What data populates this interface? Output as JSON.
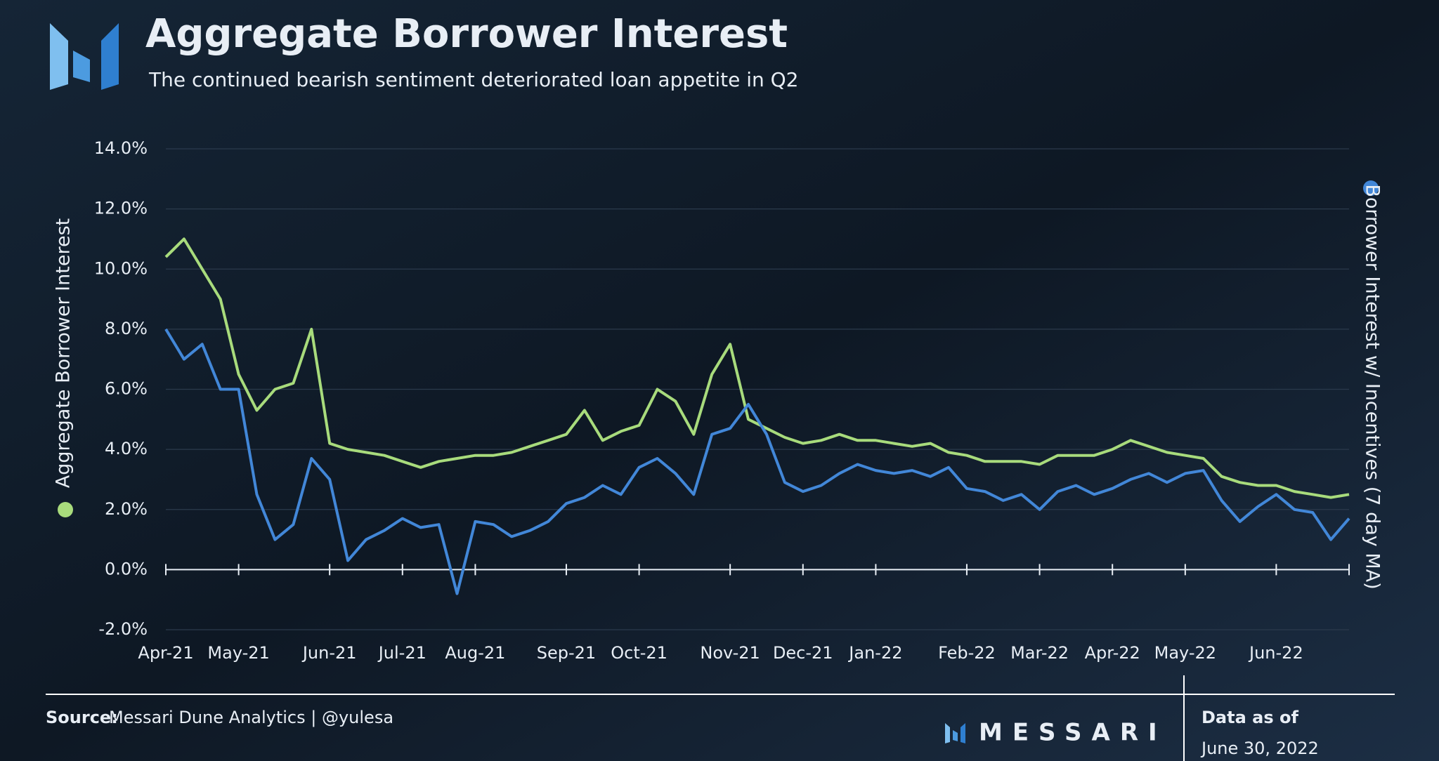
{
  "chart_data": {
    "type": "line",
    "title": "Aggregate Borrower Interest",
    "subtitle": "The continued bearish sentiment deteriorated loan appetite in Q2",
    "categories": [
      "Apr-21",
      null,
      null,
      null,
      "May-21",
      null,
      null,
      null,
      null,
      "Jun-21",
      null,
      null,
      null,
      "Jul-21",
      null,
      null,
      null,
      "Aug-21",
      null,
      null,
      null,
      null,
      "Sep-21",
      null,
      null,
      null,
      "Oct-21",
      null,
      null,
      null,
      null,
      "Nov-21",
      null,
      null,
      null,
      "Dec-21",
      null,
      null,
      null,
      "Jan-22",
      null,
      null,
      null,
      null,
      "Feb-22",
      null,
      null,
      null,
      "Mar-22",
      null,
      null,
      null,
      "Apr-22",
      null,
      null,
      null,
      "May-22",
      null,
      null,
      null,
      null,
      "Jun-22",
      null,
      null,
      null,
      null
    ],
    "series": [
      {
        "name": "Aggregate Borrower Interest",
        "color": "#a8db7c",
        "values": [
          10.4,
          11.0,
          10.0,
          9.0,
          6.5,
          5.3,
          6.0,
          6.2,
          8.0,
          4.2,
          4.0,
          3.9,
          3.8,
          3.6,
          3.4,
          3.6,
          3.7,
          3.8,
          3.8,
          3.9,
          4.1,
          4.3,
          4.5,
          5.3,
          4.3,
          4.6,
          4.8,
          6.0,
          5.6,
          4.5,
          6.5,
          7.5,
          5.0,
          4.7,
          4.4,
          4.2,
          4.3,
          4.5,
          4.3,
          4.3,
          4.2,
          4.1,
          4.2,
          3.9,
          3.8,
          3.6,
          3.6,
          3.6,
          3.5,
          3.8,
          3.8,
          3.8,
          4.0,
          4.3,
          4.1,
          3.9,
          3.8,
          3.7,
          3.1,
          2.9,
          2.8,
          2.8,
          2.6,
          2.5,
          2.4,
          2.5
        ]
      },
      {
        "name": "Borrower Interest w/ Incentives (7 day MA)",
        "color": "#4287d8",
        "values": [
          8.0,
          7.0,
          7.5,
          6.0,
          6.0,
          2.5,
          1.0,
          1.5,
          3.7,
          3.0,
          0.3,
          1.0,
          1.3,
          1.7,
          1.4,
          1.5,
          -0.8,
          1.6,
          1.5,
          1.1,
          1.3,
          1.6,
          2.2,
          2.4,
          2.8,
          2.5,
          3.4,
          3.7,
          3.2,
          2.5,
          4.5,
          4.7,
          5.5,
          4.5,
          2.9,
          2.6,
          2.8,
          3.2,
          3.5,
          3.3,
          3.2,
          3.3,
          3.1,
          3.4,
          2.7,
          2.6,
          2.3,
          2.5,
          2.0,
          2.6,
          2.8,
          2.5,
          2.7,
          3.0,
          3.2,
          2.9,
          3.2,
          3.3,
          2.3,
          1.6,
          2.1,
          2.5,
          2.0,
          1.9,
          1.0,
          1.7
        ]
      }
    ],
    "ylim": [
      -2,
      14
    ],
    "yticks": [
      {
        "value": -2,
        "label": "-2.0%"
      },
      {
        "value": 0,
        "label": "0.0%"
      },
      {
        "value": 2,
        "label": "2.0%"
      },
      {
        "value": 4,
        "label": "4.0%"
      },
      {
        "value": 6,
        "label": "6.0%"
      },
      {
        "value": 8,
        "label": "8.0%"
      },
      {
        "value": 10,
        "label": "10.0%"
      },
      {
        "value": 12,
        "label": "12.0%"
      },
      {
        "value": 14,
        "label": "14.0%"
      }
    ],
    "grid": true
  },
  "footer": {
    "source_label": "Source:",
    "source": "Messari Dune Analytics | @yulesa",
    "brand": "MESSARI",
    "data_as_of_label": "Data as of",
    "data_as_of": "June 30, 2022"
  }
}
